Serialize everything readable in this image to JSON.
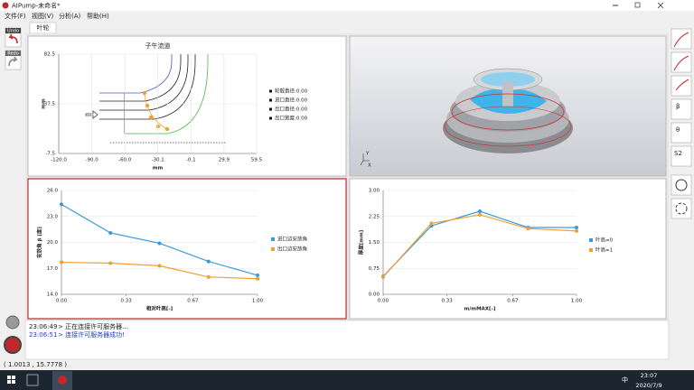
{
  "window": {
    "title": "AIPump-未命名*"
  },
  "menu": [
    "文件(F)",
    "视图(V)",
    "分析(A)",
    "帮助(H)"
  ],
  "toolbar": {
    "undo": "Undo",
    "redo": "Redo"
  },
  "right_toolbar": [
    "β",
    "θ",
    "S2"
  ],
  "tab": "叶轮",
  "view3d": {
    "axes": [
      "Y",
      "X"
    ]
  },
  "chart_data": [
    {
      "type": "meridional",
      "title": "子午流道",
      "x_label": "mm",
      "y_label": "mm",
      "xlim": [
        -120,
        59.5
      ],
      "xticks": [
        {
          "value": -120,
          "label": "-120.0"
        },
        {
          "value": -90,
          "label": "-90.0"
        },
        {
          "value": -60,
          "label": "-60.0"
        },
        -30.1,
        -0.1,
        29.9,
        59.5
      ],
      "ylim": [
        -7.5,
        82.5
      ],
      "yticks": [
        -7.5,
        37.5,
        82.5
      ],
      "legend": [
        "轮毂直径:0.00",
        "进口直径:0.00",
        "出口直径:0.00",
        "出口宽度:0.00"
      ],
      "grid": true
    },
    {
      "type": "line",
      "x_label": "相对叶高[-]",
      "y_label": "安放角 β [度]",
      "x": [
        0,
        0.25,
        0.5,
        0.75,
        1
      ],
      "series": [
        {
          "name": "进口边安放角",
          "color": "#3a9ad9",
          "values": [
            24.4,
            21.1,
            19.9,
            17.8,
            16.2
          ]
        },
        {
          "name": "出口边安放角",
          "color": "#f0a030",
          "values": [
            17.7,
            17.6,
            17.3,
            16.0,
            15.8
          ]
        }
      ],
      "xlim": [
        0,
        1
      ],
      "xticks": [
        {
          "value": 0,
          "label": "0.00"
        },
        0.33,
        0.67,
        {
          "value": 1,
          "label": "1.00"
        }
      ],
      "ylim": [
        14,
        26
      ],
      "yticks": [
        {
          "value": 14,
          "label": "14.0"
        },
        {
          "value": 17,
          "label": "17.0"
        },
        {
          "value": 20,
          "label": "20.0"
        },
        {
          "value": 23,
          "label": "23.0"
        },
        {
          "value": 26,
          "label": "26.0"
        }
      ],
      "grid": true
    },
    {
      "type": "line",
      "x_label": "m/mMAX[-]",
      "y_label": "厚度[mm]",
      "x": [
        0,
        0.25,
        0.5,
        0.75,
        1
      ],
      "series": [
        {
          "name": "叶高=0",
          "color": "#3a9ad9",
          "values": [
            0.52,
            1.98,
            2.4,
            1.93,
            1.93
          ]
        },
        {
          "name": "叶高=1",
          "color": "#f0a030",
          "values": [
            0.5,
            2.05,
            2.3,
            1.9,
            1.83
          ]
        }
      ],
      "xlim": [
        0,
        1
      ],
      "xticks": [
        {
          "value": 0,
          "label": "0.00"
        },
        0.33,
        0.67,
        {
          "value": 1,
          "label": "1.00"
        }
      ],
      "ylim": [
        0,
        3
      ],
      "yticks": [
        {
          "value": 0,
          "label": "0.00"
        },
        0.75,
        {
          "value": 1.5,
          "label": "1.50"
        },
        2.25,
        {
          "value": 3,
          "label": "3.00"
        }
      ],
      "grid": true
    }
  ],
  "log": [
    {
      "time": "23:06:49",
      "text": "> 正在连接许可服务器..."
    },
    {
      "time": "23:06:51",
      "text": "> 连接许可服务器成功!"
    }
  ],
  "status": "( 1.0013 , 15.7778 )",
  "taskbar": {
    "ime": "中",
    "time": "23:07",
    "date": "2020/7/9"
  }
}
